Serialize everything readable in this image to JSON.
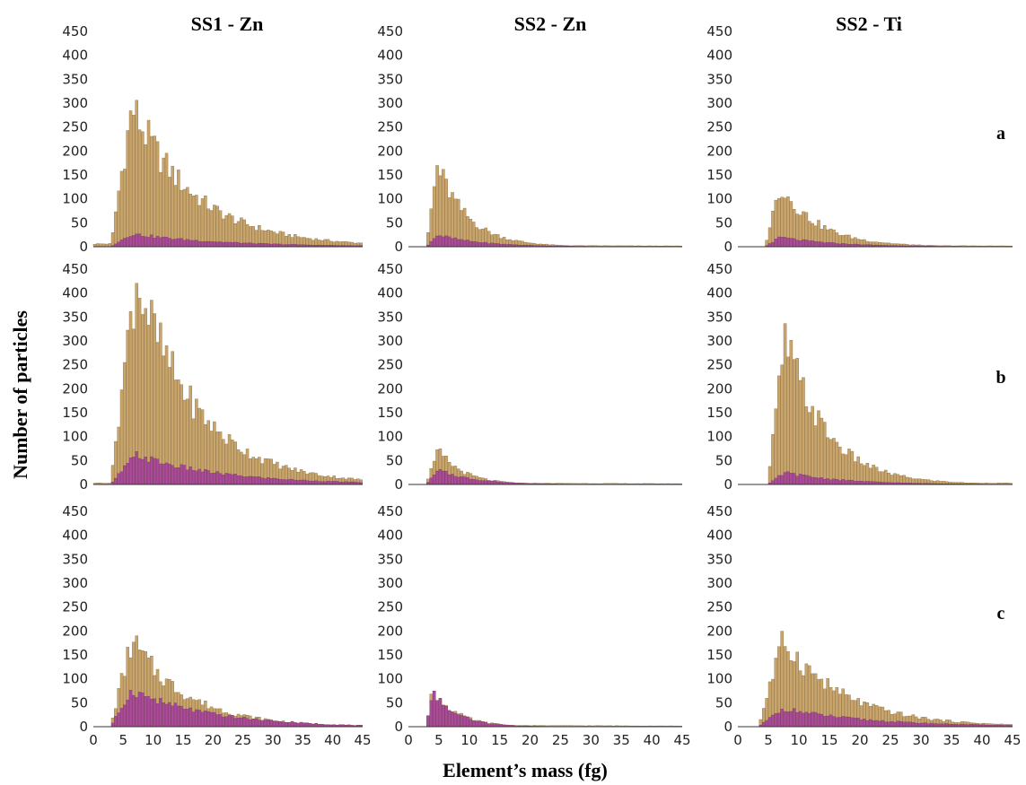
{
  "chart_data": {
    "type": "bar",
    "description_axes": {
      "ylabel": "Number of particles",
      "xlabel": "Element’s mass (fg)"
    },
    "column_titles": [
      "SS1 - Zn",
      "SS2 - Zn",
      "SS2 - Ti"
    ],
    "row_labels": [
      "a",
      "b",
      "c"
    ],
    "ylim": [
      0,
      450
    ],
    "xlim": [
      0,
      45
    ],
    "y_ticks": [
      0,
      50,
      100,
      150,
      200,
      250,
      300,
      350,
      400,
      450
    ],
    "x_ticks": [
      0,
      5,
      10,
      15,
      20,
      25,
      30,
      35,
      40,
      45
    ],
    "bin_width": 0.5,
    "series_colors": {
      "total": "#c9a56b",
      "subset": "#a8479a"
    },
    "panels": [
      {
        "row": "a",
        "column": "SS1 - Zn",
        "onset": 3.0,
        "peak_x": 6.5,
        "peak_total": 292,
        "peak_subset": 27,
        "decay": 0.095,
        "tail_total": 10,
        "pre": 6
      },
      {
        "row": "a",
        "column": "SS2 - Zn",
        "onset": 3.0,
        "peak_x": 4.8,
        "peak_total": 170,
        "peak_subset": 25,
        "decay": 0.2,
        "tail_total": 3,
        "pre": 0
      },
      {
        "row": "a",
        "column": "SS2 - Ti",
        "onset": 4.5,
        "peak_x": 7.0,
        "peak_total": 128,
        "peak_subset": 20,
        "decay": 0.16,
        "tail_total": 3,
        "pre": 0
      },
      {
        "row": "b",
        "column": "SS1 - Zn",
        "onset": 3.0,
        "peak_x": 7.2,
        "peak_total": 435,
        "peak_subset": 62,
        "decay": 0.1,
        "tail_total": 18,
        "pre": 3
      },
      {
        "row": "b",
        "column": "SS2 - Zn",
        "onset": 3.0,
        "peak_x": 5.0,
        "peak_total": 70,
        "peak_subset": 30,
        "decay": 0.24,
        "tail_total": 3,
        "pre": 0
      },
      {
        "row": "b",
        "column": "SS2 - Ti",
        "onset": 5.0,
        "peak_x": 7.8,
        "peak_total": 305,
        "peak_subset": 25,
        "decay": 0.15,
        "tail_total": 5,
        "pre": 0
      },
      {
        "row": "c",
        "column": "SS1 - Zn",
        "onset": 3.0,
        "peak_x": 6.5,
        "peak_total": 180,
        "peak_subset": 76,
        "decay": 0.11,
        "tail_total": 5,
        "pre": 0
      },
      {
        "row": "c",
        "column": "SS2 - Zn",
        "onset": 3.0,
        "peak_x": 4.0,
        "peak_total": 78,
        "peak_subset": 76,
        "decay": 0.25,
        "tail_total": 3,
        "pre": 0
      },
      {
        "row": "c",
        "column": "SS2 - Ti",
        "onset": 3.5,
        "peak_x": 7.5,
        "peak_total": 180,
        "peak_subset": 38,
        "decay": 0.1,
        "tail_total": 6,
        "pre": 0
      }
    ]
  }
}
